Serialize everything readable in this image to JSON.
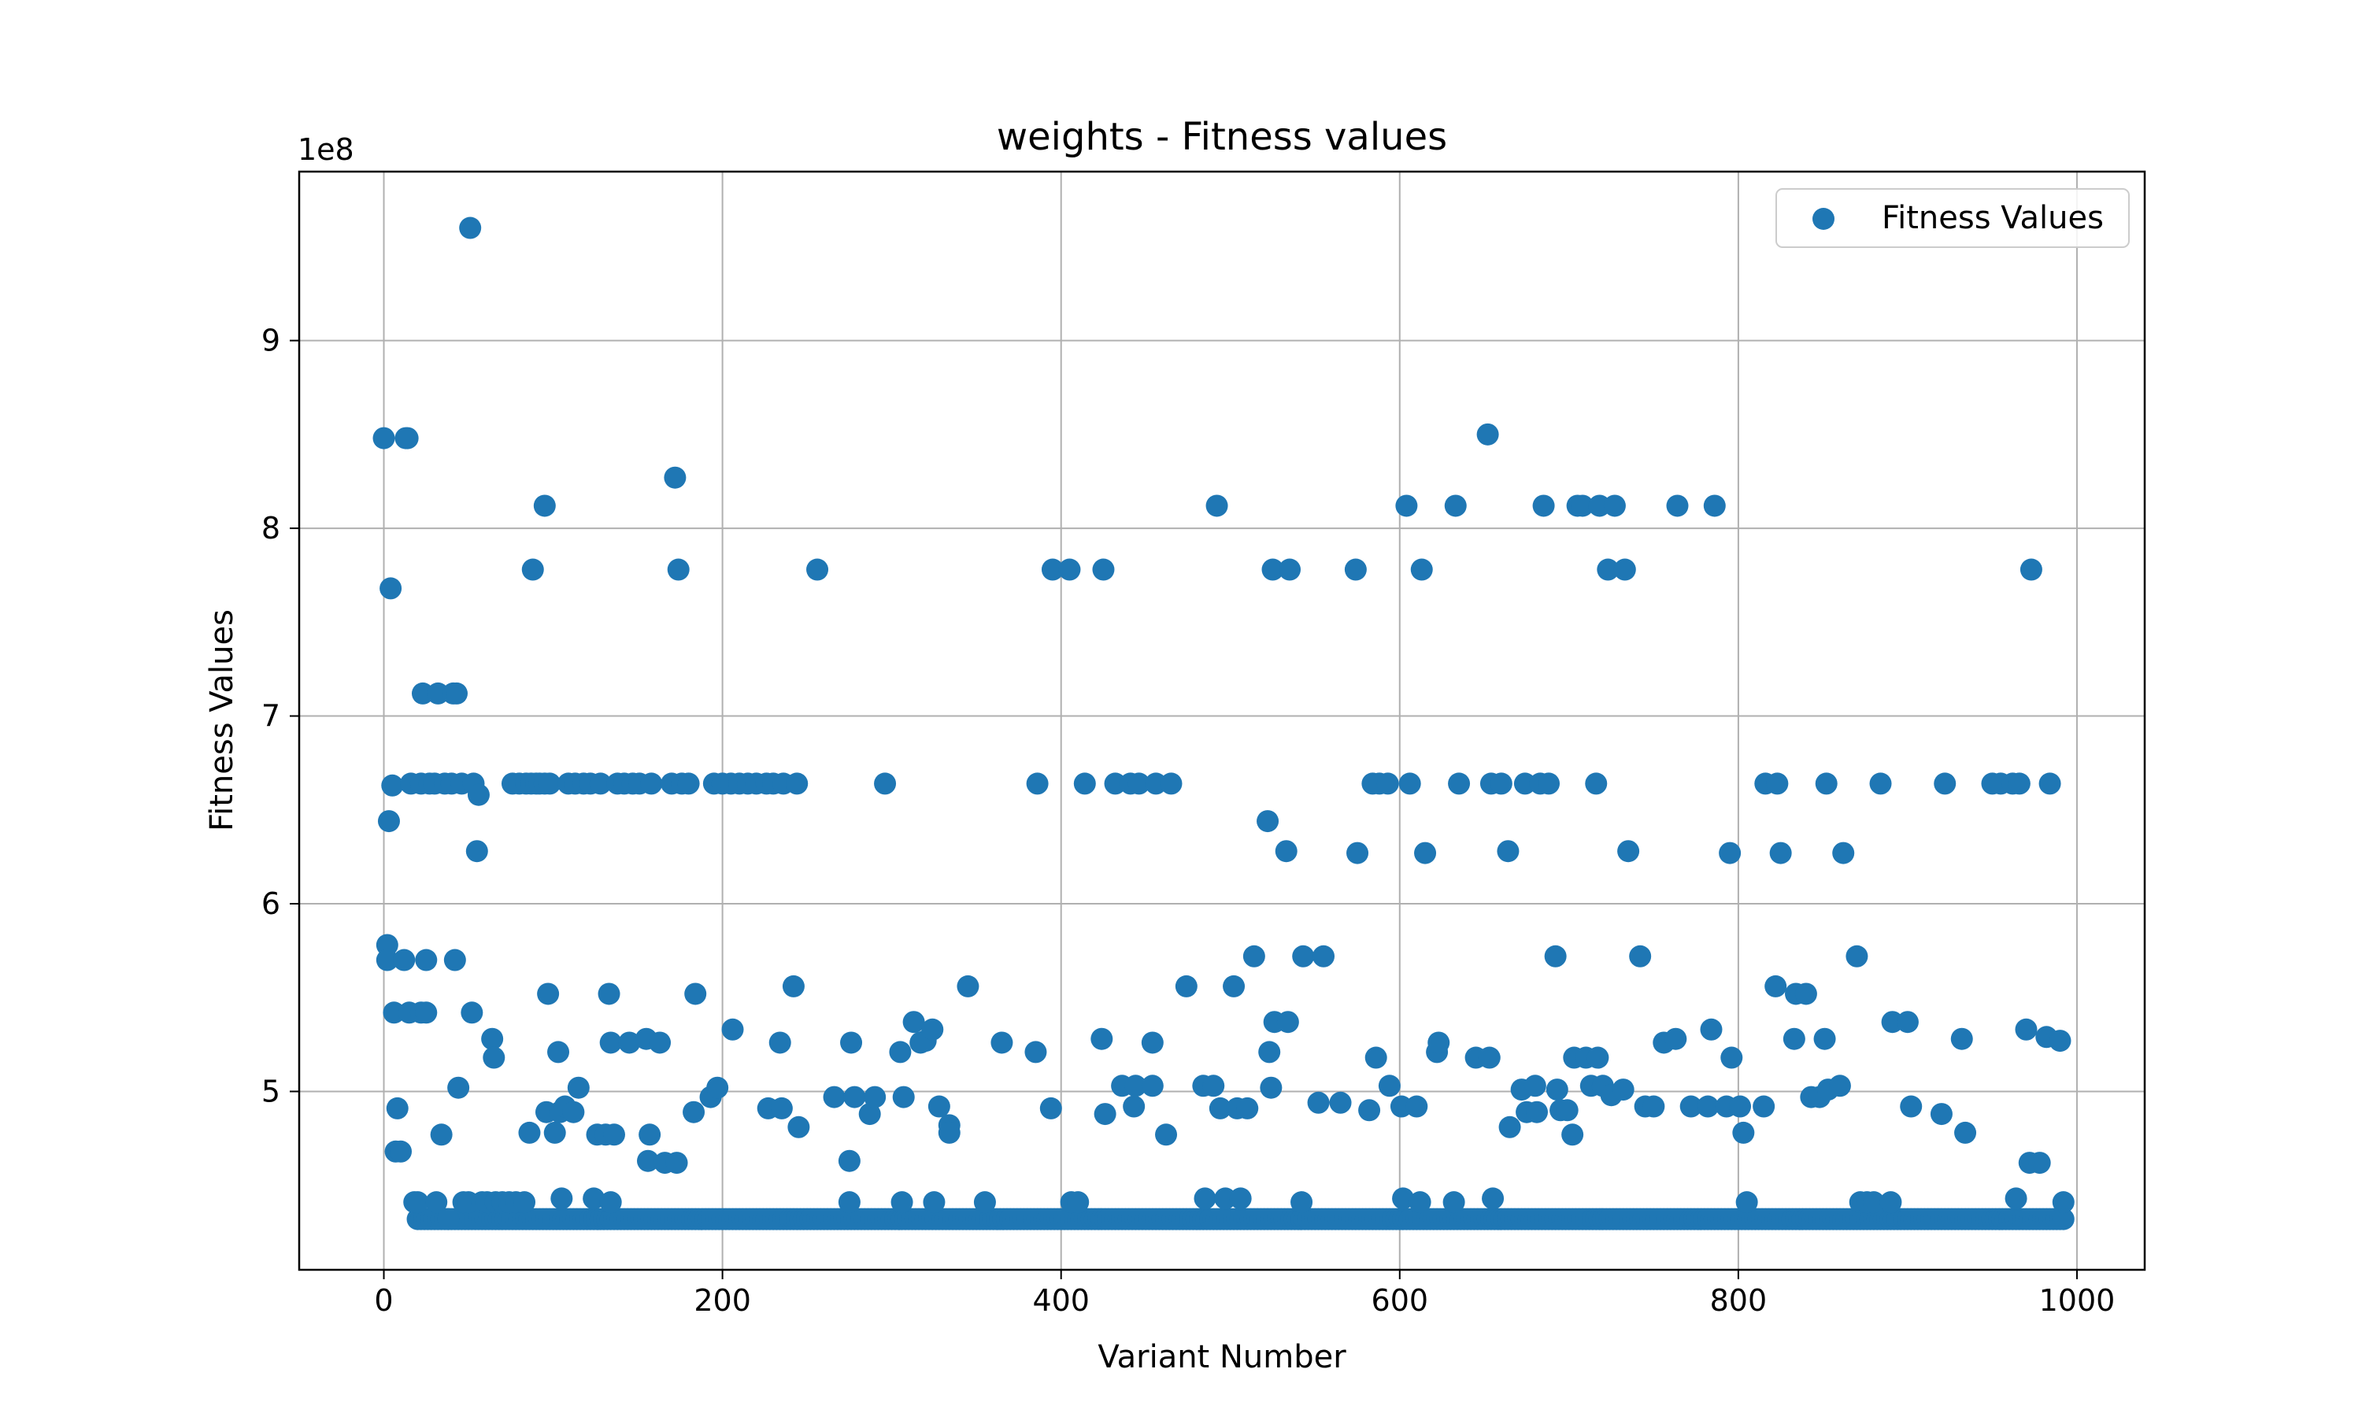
{
  "chart_data": {
    "type": "scatter",
    "title": "weights - Fitness values",
    "xlabel": "Variant Number",
    "ylabel": "Fitness Values",
    "y_offset_label": "1e8",
    "xlim": [
      -50,
      1040
    ],
    "ylim": [
      4.05,
      9.9
    ],
    "xticks": [
      0,
      200,
      400,
      600,
      800,
      1000
    ],
    "yticks": [
      5,
      6,
      7,
      8,
      9
    ],
    "grid": true,
    "legend_position": "top-right",
    "series": [
      {
        "name": "Fitness Values",
        "color": "#1f77b4",
        "base_value": 4.32,
        "base_range": [
          20,
          992
        ],
        "points": [
          [
            0,
            8.48
          ],
          [
            2,
            5.78
          ],
          [
            2,
            5.7
          ],
          [
            3,
            6.44
          ],
          [
            4,
            7.68
          ],
          [
            5,
            6.63
          ],
          [
            6,
            5.42
          ],
          [
            7,
            4.68
          ],
          [
            8,
            4.91
          ],
          [
            10,
            4.68
          ],
          [
            12,
            5.7
          ],
          [
            13,
            8.48
          ],
          [
            14,
            8.48
          ],
          [
            15,
            5.42
          ],
          [
            16,
            6.64
          ],
          [
            18,
            4.41
          ],
          [
            20,
            4.41
          ],
          [
            22,
            6.64
          ],
          [
            22,
            5.42
          ],
          [
            23,
            7.12
          ],
          [
            25,
            5.7
          ],
          [
            25,
            5.42
          ],
          [
            27,
            6.64
          ],
          [
            30,
            6.64
          ],
          [
            31,
            4.41
          ],
          [
            32,
            7.12
          ],
          [
            34,
            4.77
          ],
          [
            36,
            6.64
          ],
          [
            38,
            4.32
          ],
          [
            40,
            6.64
          ],
          [
            41,
            7.12
          ],
          [
            42,
            5.7
          ],
          [
            43,
            7.12
          ],
          [
            44,
            5.02
          ],
          [
            46,
            6.64
          ],
          [
            47,
            4.41
          ],
          [
            50,
            4.41
          ],
          [
            51,
            9.6
          ],
          [
            52,
            5.42
          ],
          [
            53,
            6.64
          ],
          [
            55,
            6.28
          ],
          [
            56,
            6.58
          ],
          [
            58,
            4.41
          ],
          [
            61,
            4.41
          ],
          [
            64,
            5.28
          ],
          [
            65,
            5.18
          ],
          [
            66,
            4.41
          ],
          [
            70,
            4.41
          ],
          [
            74,
            4.41
          ],
          [
            76,
            6.64
          ],
          [
            78,
            4.41
          ],
          [
            80,
            6.64
          ],
          [
            83,
            4.41
          ],
          [
            84,
            6.64
          ],
          [
            86,
            4.78
          ],
          [
            87,
            6.64
          ],
          [
            88,
            7.78
          ],
          [
            90,
            6.64
          ],
          [
            92,
            6.64
          ],
          [
            95,
            8.12
          ],
          [
            95,
            6.64
          ],
          [
            96,
            4.89
          ],
          [
            97,
            5.52
          ],
          [
            98,
            6.64
          ],
          [
            101,
            4.78
          ],
          [
            103,
            5.21
          ],
          [
            104,
            4.89
          ],
          [
            105,
            4.43
          ],
          [
            107,
            4.92
          ],
          [
            109,
            6.64
          ],
          [
            112,
            4.89
          ],
          [
            113,
            6.64
          ],
          [
            115,
            5.02
          ],
          [
            118,
            6.64
          ],
          [
            122,
            6.64
          ],
          [
            124,
            4.43
          ],
          [
            126,
            4.77
          ],
          [
            128,
            6.64
          ],
          [
            131,
            4.77
          ],
          [
            133,
            5.52
          ],
          [
            134,
            4.41
          ],
          [
            134,
            5.26
          ],
          [
            136,
            4.77
          ],
          [
            138,
            6.64
          ],
          [
            142,
            6.64
          ],
          [
            145,
            5.26
          ],
          [
            147,
            6.64
          ],
          [
            151,
            6.64
          ],
          [
            155,
            5.28
          ],
          [
            156,
            4.63
          ],
          [
            157,
            4.77
          ],
          [
            158,
            6.64
          ],
          [
            163,
            5.26
          ],
          [
            166,
            4.62
          ],
          [
            170,
            6.64
          ],
          [
            172,
            8.27
          ],
          [
            173,
            4.62
          ],
          [
            174,
            7.78
          ],
          [
            176,
            6.64
          ],
          [
            180,
            6.64
          ],
          [
            183,
            4.89
          ],
          [
            184,
            5.52
          ],
          [
            193,
            4.97
          ],
          [
            195,
            6.64
          ],
          [
            197,
            5.02
          ],
          [
            200,
            6.64
          ],
          [
            205,
            6.64
          ],
          [
            206,
            5.33
          ],
          [
            210,
            6.64
          ],
          [
            215,
            6.64
          ],
          [
            220,
            6.64
          ],
          [
            226,
            6.64
          ],
          [
            227,
            4.91
          ],
          [
            230,
            6.64
          ],
          [
            234,
            5.26
          ],
          [
            235,
            4.91
          ],
          [
            236,
            6.64
          ],
          [
            242,
            5.56
          ],
          [
            244,
            6.64
          ],
          [
            245,
            4.81
          ],
          [
            256,
            7.78
          ],
          [
            266,
            4.97
          ],
          [
            275,
            4.41
          ],
          [
            275,
            4.63
          ],
          [
            276,
            5.26
          ],
          [
            278,
            4.97
          ],
          [
            287,
            4.88
          ],
          [
            290,
            4.97
          ],
          [
            296,
            6.64
          ],
          [
            305,
            5.21
          ],
          [
            306,
            4.41
          ],
          [
            307,
            4.97
          ],
          [
            313,
            5.37
          ],
          [
            317,
            5.26
          ],
          [
            320,
            5.27
          ],
          [
            324,
            5.33
          ],
          [
            325,
            4.41
          ],
          [
            328,
            4.92
          ],
          [
            334,
            4.82
          ],
          [
            334,
            4.78
          ],
          [
            345,
            5.56
          ],
          [
            355,
            4.41
          ],
          [
            365,
            5.26
          ],
          [
            385,
            5.21
          ],
          [
            386,
            6.64
          ],
          [
            394,
            4.91
          ],
          [
            395,
            7.78
          ],
          [
            405,
            7.78
          ],
          [
            406,
            4.41
          ],
          [
            410,
            4.41
          ],
          [
            414,
            6.64
          ],
          [
            424,
            5.28
          ],
          [
            425,
            7.78
          ],
          [
            426,
            4.88
          ],
          [
            432,
            6.64
          ],
          [
            436,
            5.03
          ],
          [
            441,
            6.64
          ],
          [
            443,
            4.92
          ],
          [
            444,
            5.03
          ],
          [
            446,
            6.64
          ],
          [
            454,
            5.03
          ],
          [
            454,
            5.26
          ],
          [
            456,
            6.64
          ],
          [
            462,
            4.77
          ],
          [
            465,
            6.64
          ],
          [
            474,
            5.56
          ],
          [
            484,
            5.03
          ],
          [
            485,
            4.43
          ],
          [
            490,
            5.03
          ],
          [
            492,
            8.12
          ],
          [
            494,
            4.91
          ],
          [
            497,
            4.43
          ],
          [
            502,
            5.56
          ],
          [
            504,
            4.91
          ],
          [
            506,
            4.43
          ],
          [
            510,
            4.91
          ],
          [
            514,
            5.72
          ],
          [
            522,
            6.44
          ],
          [
            523,
            5.21
          ],
          [
            524,
            5.02
          ],
          [
            525,
            7.78
          ],
          [
            526,
            5.37
          ],
          [
            533,
            6.28
          ],
          [
            534,
            5.37
          ],
          [
            535,
            7.78
          ],
          [
            542,
            4.41
          ],
          [
            543,
            5.72
          ],
          [
            552,
            4.94
          ],
          [
            555,
            5.72
          ],
          [
            565,
            4.94
          ],
          [
            574,
            7.78
          ],
          [
            575,
            6.27
          ],
          [
            582,
            4.9
          ],
          [
            584,
            6.64
          ],
          [
            586,
            5.18
          ],
          [
            588,
            6.64
          ],
          [
            593,
            6.64
          ],
          [
            594,
            5.03
          ],
          [
            601,
            4.92
          ],
          [
            602,
            4.43
          ],
          [
            604,
            8.12
          ],
          [
            606,
            6.64
          ],
          [
            610,
            4.92
          ],
          [
            612,
            4.41
          ],
          [
            613,
            7.78
          ],
          [
            615,
            6.27
          ],
          [
            622,
            5.21
          ],
          [
            623,
            5.26
          ],
          [
            632,
            4.41
          ],
          [
            633,
            8.12
          ],
          [
            635,
            6.64
          ],
          [
            645,
            5.18
          ],
          [
            652,
            8.5
          ],
          [
            653,
            5.18
          ],
          [
            654,
            6.64
          ],
          [
            655,
            4.43
          ],
          [
            660,
            6.64
          ],
          [
            664,
            6.28
          ],
          [
            665,
            4.81
          ],
          [
            672,
            5.01
          ],
          [
            674,
            6.64
          ],
          [
            675,
            4.89
          ],
          [
            680,
            5.03
          ],
          [
            681,
            4.89
          ],
          [
            683,
            6.64
          ],
          [
            685,
            8.12
          ],
          [
            688,
            6.64
          ],
          [
            692,
            5.72
          ],
          [
            693,
            5.01
          ],
          [
            695,
            4.9
          ],
          [
            699,
            4.9
          ],
          [
            702,
            4.77
          ],
          [
            703,
            5.18
          ],
          [
            705,
            8.12
          ],
          [
            708,
            8.12
          ],
          [
            710,
            5.18
          ],
          [
            713,
            5.03
          ],
          [
            716,
            6.64
          ],
          [
            717,
            5.18
          ],
          [
            718,
            8.12
          ],
          [
            720,
            5.03
          ],
          [
            723,
            7.78
          ],
          [
            725,
            4.98
          ],
          [
            727,
            8.12
          ],
          [
            732,
            5.01
          ],
          [
            733,
            7.78
          ],
          [
            735,
            6.28
          ],
          [
            742,
            5.72
          ],
          [
            745,
            4.92
          ],
          [
            750,
            4.92
          ],
          [
            756,
            5.26
          ],
          [
            763,
            5.28
          ],
          [
            764,
            8.12
          ],
          [
            772,
            4.92
          ],
          [
            782,
            4.92
          ],
          [
            784,
            5.33
          ],
          [
            786,
            8.12
          ],
          [
            793,
            4.92
          ],
          [
            795,
            6.27
          ],
          [
            796,
            5.18
          ],
          [
            801,
            4.92
          ],
          [
            803,
            4.78
          ],
          [
            805,
            4.41
          ],
          [
            815,
            4.92
          ],
          [
            816,
            6.64
          ],
          [
            822,
            5.56
          ],
          [
            823,
            6.64
          ],
          [
            825,
            6.27
          ],
          [
            833,
            5.28
          ],
          [
            834,
            5.52
          ],
          [
            840,
            5.52
          ],
          [
            843,
            4.97
          ],
          [
            848,
            4.97
          ],
          [
            851,
            5.28
          ],
          [
            852,
            6.64
          ],
          [
            853,
            5.01
          ],
          [
            860,
            5.03
          ],
          [
            862,
            6.27
          ],
          [
            870,
            5.72
          ],
          [
            872,
            4.41
          ],
          [
            876,
            4.41
          ],
          [
            880,
            4.41
          ],
          [
            884,
            6.64
          ],
          [
            890,
            4.41
          ],
          [
            891,
            5.37
          ],
          [
            900,
            5.37
          ],
          [
            902,
            4.92
          ],
          [
            920,
            4.88
          ],
          [
            922,
            6.64
          ],
          [
            932,
            5.28
          ],
          [
            934,
            4.78
          ],
          [
            950,
            6.64
          ],
          [
            955,
            6.64
          ],
          [
            962,
            6.64
          ],
          [
            964,
            4.43
          ],
          [
            966,
            6.64
          ],
          [
            970,
            5.33
          ],
          [
            972,
            4.62
          ],
          [
            973,
            7.78
          ],
          [
            978,
            4.62
          ],
          [
            982,
            5.29
          ],
          [
            984,
            6.64
          ],
          [
            990,
            5.27
          ],
          [
            992,
            4.41
          ]
        ]
      }
    ]
  }
}
